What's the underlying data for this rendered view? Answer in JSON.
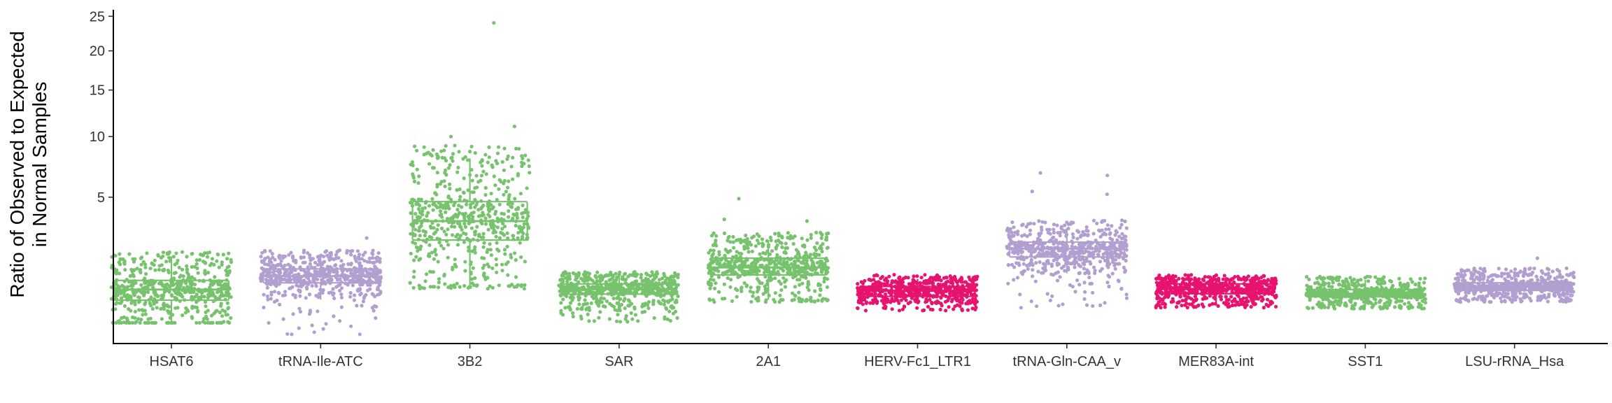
{
  "chart_data": {
    "type": "box-jitter",
    "title": "",
    "ylabel_line1": "Ratio of Observed to Expected",
    "ylabel_line2": "in Normal Samples",
    "xlabel": "",
    "y_scale": "sqrt",
    "ylim": [
      0,
      26
    ],
    "y_ticks": [
      5,
      10,
      15,
      20,
      25
    ],
    "grid": false,
    "legend": "none",
    "colors": {
      "green": "#77c36d",
      "purple": "#b19fd0",
      "pink": "#e7136f"
    },
    "categories": [
      {
        "name": "HSAT6",
        "color": "#77c36d",
        "q1": 0.44,
        "median": 0.68,
        "q3": 0.93,
        "whisker_low": 0.1,
        "whisker_high": 1.71,
        "min": 0.1,
        "max": 2.0,
        "n": 600,
        "outliers": []
      },
      {
        "name": "tRNA-Ile-ATC",
        "color": "#b19fd0",
        "q1": 0.86,
        "median": 1.06,
        "q3": 1.3,
        "whisker_low": 0.45,
        "whisker_high": 1.78,
        "min": 0.02,
        "max": 2.6,
        "n": 600,
        "outliers": [
          2.6,
          0.05,
          0.03,
          0.02,
          0.02
        ]
      },
      {
        "name": "3B2",
        "color": "#77c36d",
        "q1": 2.5,
        "median": 3.5,
        "q3": 4.7,
        "whisker_low": 0.8,
        "whisker_high": 8.0,
        "min": 0.7,
        "max": 24.0,
        "n": 600,
        "outliers": [
          24.0,
          11.0,
          10.0
        ]
      },
      {
        "name": "SAR",
        "color": "#77c36d",
        "q1": 0.57,
        "median": 0.69,
        "q3": 0.83,
        "whisker_low": 0.27,
        "whisker_high": 1.1,
        "min": 0.1,
        "max": 1.2,
        "n": 600,
        "outliers": []
      },
      {
        "name": "2A1",
        "color": "#77c36d",
        "q1": 1.1,
        "median": 1.35,
        "q3": 1.7,
        "whisker_low": 0.45,
        "whisker_high": 2.5,
        "min": 0.4,
        "max": 4.9,
        "n": 600,
        "outliers": [
          4.9,
          3.6,
          3.5
        ]
      },
      {
        "name": "HERV-Fc1_LTR1",
        "color": "#e7136f",
        "q1": 0.52,
        "median": 0.65,
        "q3": 0.76,
        "whisker_low": 0.37,
        "whisker_high": 0.97,
        "min": 0.25,
        "max": 1.2,
        "n": 600,
        "outliers": []
      },
      {
        "name": "tRNA-Gln-CAA_v",
        "color": "#b19fd0",
        "q1": 1.75,
        "median": 2.1,
        "q3": 2.4,
        "whisker_low": 1.15,
        "whisker_high": 3.1,
        "min": 0.3,
        "max": 6.8,
        "n": 600,
        "outliers": [
          6.8,
          6.6,
          5.4,
          5.2,
          0.3
        ]
      },
      {
        "name": "MER83A-int",
        "color": "#e7136f",
        "q1": 0.58,
        "median": 0.69,
        "q3": 0.83,
        "whisker_low": 0.37,
        "whisker_high": 1.0,
        "min": 0.3,
        "max": 1.1,
        "n": 600,
        "outliers": []
      },
      {
        "name": "SST1",
        "color": "#77c36d",
        "q1": 0.51,
        "median": 0.58,
        "q3": 0.68,
        "whisker_low": 0.32,
        "whisker_high": 0.95,
        "min": 0.28,
        "max": 1.05,
        "n": 600,
        "outliers": []
      },
      {
        "name": "LSU-rRNA_Hsa",
        "color": "#b19fd0",
        "q1": 0.66,
        "median": 0.75,
        "q3": 0.86,
        "whisker_low": 0.45,
        "whisker_high": 1.15,
        "min": 0.4,
        "max": 1.7,
        "n": 600,
        "outliers": [
          1.7
        ]
      }
    ]
  }
}
